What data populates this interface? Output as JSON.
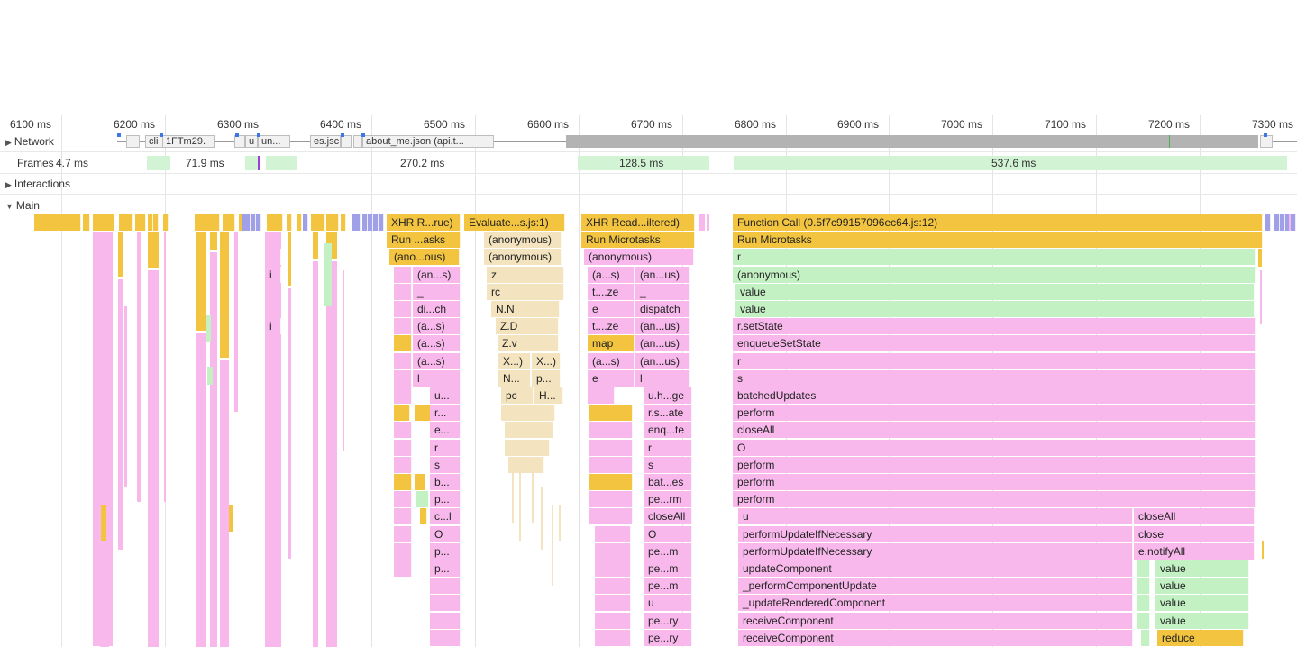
{
  "ruler": {
    "ticks": [
      "6100 ms",
      "6200 ms",
      "6300 ms",
      "6400 ms",
      "6500 ms",
      "6600 ms",
      "6700 ms",
      "6800 ms",
      "6900 ms",
      "7000 ms",
      "7100 ms",
      "7200 ms",
      "7300 ms"
    ]
  },
  "tracks": {
    "network_label": "Network",
    "frames_label": "Frames",
    "interactions_label": "Interactions",
    "main_label": "Main"
  },
  "network": {
    "requests": [
      "cli",
      "1FTm29.",
      "u",
      "un...",
      "es.jsc",
      "about_me.json (api.t..."
    ]
  },
  "frames": {
    "durations": [
      "4.7 ms",
      "71.9 ms",
      "270.2 ms",
      "128.5 ms",
      "537.6 ms"
    ]
  },
  "colors": {
    "scripting": "#f2c43f",
    "js_function": "#f8b8ec",
    "green_function": "#c3f1c4",
    "evaluate": "#f3e4bf",
    "network_idle": "#b3b3b3",
    "frame": "#d3f4d4"
  },
  "flame": {
    "c1": [
      "XHR R...rue)",
      "Run ...asks",
      "(ano...ous)",
      "(an...s)",
      "_",
      "di...ch",
      "(a...s)",
      "(a...s)",
      "(a...s)",
      "l",
      "u...",
      "r...",
      "e...",
      "r",
      "s",
      "b...",
      "p...",
      "c...l",
      "O",
      "p...",
      "p..."
    ],
    "c2": [
      "Evaluate...s.js:1)",
      "(anonymous)",
      "(anonymous)",
      "z",
      "rc",
      "N.N",
      "Z.D",
      "Z.v",
      "X...)",
      "X...)",
      "N...",
      "p...",
      "pc",
      "H..."
    ],
    "c3": [
      "XHR Read...iltered)",
      "Run Microtasks",
      "(anonymous)",
      "(a...s)",
      "(an...us)",
      "t....ze",
      "_",
      "e",
      "dispatch",
      "t....ze",
      "(an...us)",
      "map",
      "(an...us)",
      "(a...s)",
      "(an...us)",
      "e",
      "l",
      "u.h...ge",
      "r.s...ate",
      "enq...te",
      "r",
      "s",
      "bat...es",
      "pe...rm",
      "closeAll",
      "O",
      "pe...m",
      "pe...m",
      "pe...m",
      "u",
      "pe...ry",
      "pe...ry"
    ],
    "c4": [
      "Function Call (0.5f7c99157096ec64.js:12)",
      "Run Microtasks",
      "r",
      "(anonymous)",
      "value",
      "value",
      "r.setState",
      "enqueueSetState",
      "r",
      "s",
      "batchedUpdates",
      "perform",
      "closeAll",
      "O",
      "perform",
      "perform",
      "perform",
      "u",
      "performUpdateIfNecessary",
      "performUpdateIfNecessary",
      "updateComponent",
      "_performComponentUpdate",
      "_updateRenderedComponent",
      "receiveComponent",
      "receiveComponent"
    ],
    "c5": [
      "closeAll",
      "close",
      "e.notifyAll",
      "value",
      "value",
      "value",
      "value",
      "reduce"
    ],
    "misc": [
      "i",
      "i"
    ]
  }
}
